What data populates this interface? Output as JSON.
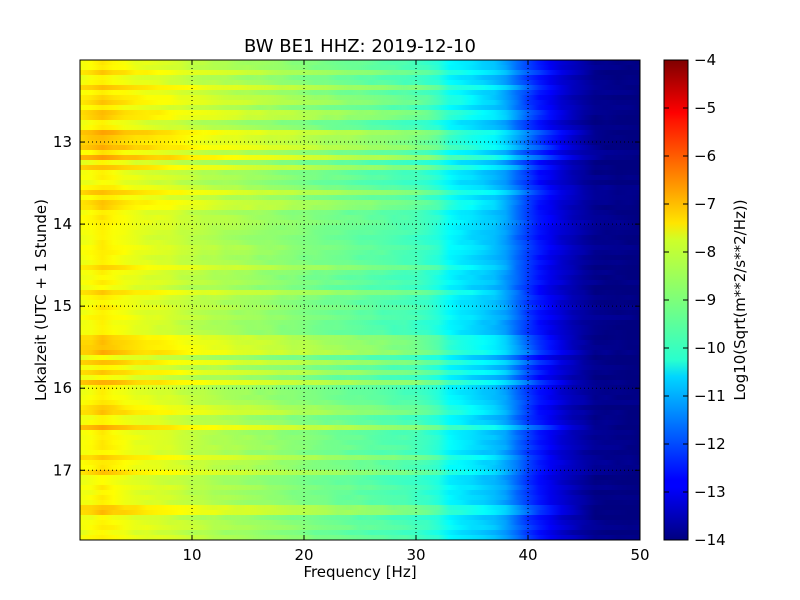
{
  "chart_data": {
    "type": "heatmap",
    "title": "BW BE1 HHZ: 2019-12-10",
    "xlabel": "Frequency [Hz]",
    "ylabel": "Lokalzeit (UTC + 1 Stunde)",
    "xlim": [
      0,
      50
    ],
    "ylim": [
      17.85,
      12.0
    ],
    "y_inverted": true,
    "x_ticks": [
      10,
      20,
      30,
      40,
      50
    ],
    "x_tick_labels": [
      "10",
      "20",
      "30",
      "40",
      "50"
    ],
    "y_ticks": [
      13,
      14,
      15,
      16,
      17
    ],
    "y_tick_labels": [
      "13",
      "14",
      "15",
      "16",
      "17"
    ],
    "grid": true,
    "grid_style": "dotted",
    "colormap": "jet",
    "colorbar": {
      "label": "Log10(Sqrt(m**2/s**2/Hz))",
      "range": [
        -14,
        -4
      ],
      "ticks": [
        -4,
        -5,
        -6,
        -7,
        -8,
        -9,
        -10,
        -11,
        -12,
        -13,
        -14
      ],
      "tick_labels": [
        "−4",
        "−5",
        "−6",
        "−7",
        "−8",
        "−9",
        "−10",
        "−11",
        "−12",
        "−13",
        "−14"
      ]
    },
    "frequency_profile": {
      "frequency_hz": [
        0,
        1,
        2,
        3,
        5,
        8,
        10,
        15,
        20,
        25,
        30,
        31.5,
        32.5,
        33,
        35,
        37,
        38,
        39,
        40,
        41,
        42,
        43,
        44,
        45,
        46,
        50
      ],
      "log10_asd": [
        -7.9,
        -7.8,
        -7.6,
        -7.75,
        -8.0,
        -8.2,
        -8.4,
        -8.7,
        -9.0,
        -9.3,
        -9.6,
        -9.8,
        -10.0,
        -10.3,
        -10.6,
        -10.9,
        -11.2,
        -11.7,
        -12.2,
        -12.6,
        -12.9,
        -13.2,
        -13.45,
        -13.65,
        -13.85,
        -14.0
      ]
    },
    "bright_bands": [
      {
        "time": 12.15,
        "delta": 0.5,
        "fmax": 47
      },
      {
        "time": 12.35,
        "delta": 0.5,
        "fmax": 44
      },
      {
        "time": 12.48,
        "delta": 0.4,
        "fmax": 40
      },
      {
        "time": 12.68,
        "delta": 0.5,
        "fmax": 45
      },
      {
        "time": 12.88,
        "delta": 0.8,
        "fmax": 47
      },
      {
        "time": 12.98,
        "delta": 0.6,
        "fmax": 46
      },
      {
        "time": 13.07,
        "delta": 0.8,
        "fmax": 47
      },
      {
        "time": 13.18,
        "delta": 0.8,
        "fmax": 47
      },
      {
        "time": 13.32,
        "delta": 0.6,
        "fmax": 45
      },
      {
        "time": 13.62,
        "delta": 0.5,
        "fmax": 45
      },
      {
        "time": 13.78,
        "delta": 0.4,
        "fmax": 41
      },
      {
        "time": 14.52,
        "delta": 0.45,
        "fmax": 41
      },
      {
        "time": 14.82,
        "delta": 0.5,
        "fmax": 41
      },
      {
        "time": 15.38,
        "delta": 0.55,
        "fmax": 45
      },
      {
        "time": 15.48,
        "delta": 0.5,
        "fmax": 45
      },
      {
        "time": 15.58,
        "delta": 0.6,
        "fmax": 46
      },
      {
        "time": 15.68,
        "delta": 0.6,
        "fmax": 46
      },
      {
        "time": 15.82,
        "delta": 0.5,
        "fmax": 44
      },
      {
        "time": 15.93,
        "delta": 0.6,
        "fmax": 45
      },
      {
        "time": 16.28,
        "delta": 0.45,
        "fmax": 41
      },
      {
        "time": 16.48,
        "delta": 0.75,
        "fmax": 47
      },
      {
        "time": 16.83,
        "delta": 0.4,
        "fmax": 42
      },
      {
        "time": 17.03,
        "delta": 0.4,
        "fmax": 41
      },
      {
        "time": 17.48,
        "delta": 0.6,
        "fmax": 46
      }
    ]
  }
}
